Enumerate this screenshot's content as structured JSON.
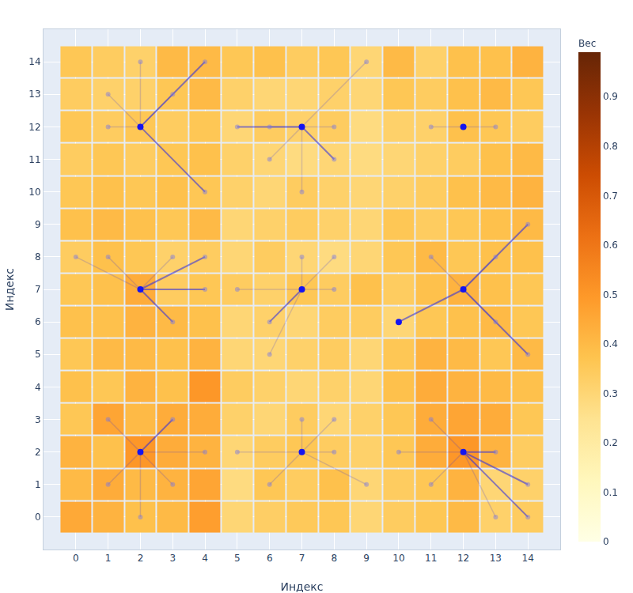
{
  "chart_data": {
    "type": "heatmap",
    "x_label": "Индекс",
    "y_label": "Индекс",
    "x": [
      0,
      1,
      2,
      3,
      4,
      5,
      6,
      7,
      8,
      9,
      10,
      11,
      12,
      13,
      14
    ],
    "y": [
      0,
      1,
      2,
      3,
      4,
      5,
      6,
      7,
      8,
      9,
      10,
      11,
      12,
      13,
      14
    ],
    "cells": [
      [
        0.45,
        0.42,
        0.38,
        0.4,
        0.48,
        0.3,
        0.33,
        0.35,
        0.36,
        0.3,
        0.34,
        0.36,
        0.4,
        0.32,
        0.34
      ],
      [
        0.4,
        0.44,
        0.4,
        0.42,
        0.46,
        0.28,
        0.36,
        0.34,
        0.38,
        0.3,
        0.34,
        0.36,
        0.42,
        0.3,
        0.32
      ],
      [
        0.42,
        0.38,
        0.5,
        0.44,
        0.42,
        0.3,
        0.34,
        0.36,
        0.34,
        0.32,
        0.36,
        0.44,
        0.5,
        0.42,
        0.34
      ],
      [
        0.36,
        0.46,
        0.4,
        0.44,
        0.44,
        0.32,
        0.3,
        0.34,
        0.3,
        0.32,
        0.36,
        0.44,
        0.46,
        0.44,
        0.36
      ],
      [
        0.38,
        0.36,
        0.42,
        0.38,
        0.5,
        0.34,
        0.32,
        0.3,
        0.32,
        0.3,
        0.38,
        0.44,
        0.42,
        0.4,
        0.38
      ],
      [
        0.36,
        0.4,
        0.4,
        0.38,
        0.42,
        0.3,
        0.3,
        0.32,
        0.34,
        0.3,
        0.36,
        0.42,
        0.4,
        0.36,
        0.4
      ],
      [
        0.38,
        0.38,
        0.42,
        0.4,
        0.38,
        0.3,
        0.32,
        0.3,
        0.34,
        0.34,
        0.3,
        0.36,
        0.38,
        0.4,
        0.36
      ],
      [
        0.36,
        0.38,
        0.44,
        0.34,
        0.36,
        0.34,
        0.32,
        0.36,
        0.34,
        0.38,
        0.34,
        0.38,
        0.42,
        0.38,
        0.36
      ],
      [
        0.34,
        0.38,
        0.36,
        0.32,
        0.34,
        0.3,
        0.34,
        0.3,
        0.28,
        0.3,
        0.36,
        0.4,
        0.36,
        0.38,
        0.38
      ],
      [
        0.38,
        0.4,
        0.38,
        0.36,
        0.4,
        0.3,
        0.32,
        0.34,
        0.32,
        0.3,
        0.36,
        0.34,
        0.36,
        0.38,
        0.4
      ],
      [
        0.36,
        0.38,
        0.36,
        0.38,
        0.36,
        0.32,
        0.3,
        0.34,
        0.32,
        0.3,
        0.32,
        0.34,
        0.38,
        0.4,
        0.42
      ],
      [
        0.34,
        0.36,
        0.34,
        0.36,
        0.38,
        0.32,
        0.3,
        0.28,
        0.3,
        0.28,
        0.3,
        0.32,
        0.34,
        0.38,
        0.4
      ],
      [
        0.36,
        0.34,
        0.36,
        0.34,
        0.36,
        0.3,
        0.34,
        0.32,
        0.34,
        0.28,
        0.32,
        0.32,
        0.38,
        0.36,
        0.34
      ],
      [
        0.34,
        0.32,
        0.32,
        0.36,
        0.4,
        0.32,
        0.3,
        0.3,
        0.32,
        0.3,
        0.36,
        0.34,
        0.38,
        0.4,
        0.36
      ],
      [
        0.36,
        0.34,
        0.32,
        0.4,
        0.4,
        0.36,
        0.38,
        0.34,
        0.36,
        0.3,
        0.4,
        0.32,
        0.38,
        0.38,
        0.42
      ]
    ],
    "color_range": [
      0,
      0.99
    ],
    "color_ticks": [
      0,
      0.1,
      0.2,
      0.3,
      0.4,
      0.5,
      0.6,
      0.7,
      0.8,
      0.9
    ],
    "color_label": "Вес",
    "hubs": [
      [
        2,
        12
      ],
      [
        7,
        12
      ],
      [
        12,
        12
      ],
      [
        2,
        7
      ],
      [
        7,
        7
      ],
      [
        12,
        7
      ],
      [
        2,
        2
      ],
      [
        7,
        2
      ],
      [
        12,
        2
      ],
      [
        10,
        6
      ]
    ],
    "strong_edges": [
      [
        2,
        12,
        4,
        14
      ],
      [
        2,
        12,
        4,
        10
      ],
      [
        7,
        12,
        5,
        12
      ],
      [
        7,
        12,
        8,
        11
      ],
      [
        2,
        7,
        4,
        7
      ],
      [
        2,
        7,
        4,
        8
      ],
      [
        2,
        7,
        3,
        6
      ],
      [
        7,
        7,
        6,
        6
      ],
      [
        12,
        7,
        10,
        6
      ],
      [
        12,
        7,
        14,
        9
      ],
      [
        12,
        7,
        14,
        5
      ],
      [
        12,
        2,
        13,
        2
      ],
      [
        12,
        2,
        14,
        1
      ],
      [
        12,
        2,
        14,
        0
      ],
      [
        2,
        2,
        3,
        3
      ]
    ],
    "weak_edges": [
      [
        2,
        12,
        1,
        13
      ],
      [
        2,
        12,
        3,
        13
      ],
      [
        2,
        12,
        1,
        12
      ],
      [
        2,
        12,
        2,
        14
      ],
      [
        7,
        12,
        6,
        12
      ],
      [
        7,
        12,
        8,
        12
      ],
      [
        7,
        12,
        7,
        10
      ],
      [
        7,
        12,
        6,
        11
      ],
      [
        7,
        12,
        9,
        14
      ],
      [
        12,
        12,
        13,
        12
      ],
      [
        12,
        12,
        11,
        12
      ],
      [
        2,
        7,
        1,
        8
      ],
      [
        2,
        7,
        3,
        8
      ],
      [
        2,
        7,
        0,
        8
      ],
      [
        7,
        7,
        5,
        7
      ],
      [
        7,
        7,
        8,
        7
      ],
      [
        7,
        7,
        7,
        8
      ],
      [
        7,
        7,
        8,
        8
      ],
      [
        7,
        7,
        6,
        5
      ],
      [
        12,
        7,
        13,
        8
      ],
      [
        12,
        7,
        11,
        8
      ],
      [
        12,
        7,
        13,
        6
      ],
      [
        2,
        2,
        1,
        1
      ],
      [
        2,
        2,
        1,
        3
      ],
      [
        2,
        2,
        4,
        2
      ],
      [
        2,
        2,
        2,
        0
      ],
      [
        2,
        2,
        3,
        1
      ],
      [
        7,
        2,
        5,
        2
      ],
      [
        7,
        2,
        6,
        1
      ],
      [
        7,
        2,
        8,
        2
      ],
      [
        7,
        2,
        9,
        1
      ],
      [
        7,
        2,
        7,
        3
      ],
      [
        7,
        2,
        8,
        3
      ],
      [
        12,
        2,
        11,
        1
      ],
      [
        12,
        2,
        13,
        0
      ],
      [
        12,
        2,
        11,
        3
      ],
      [
        12,
        2,
        10,
        2
      ]
    ],
    "xlim": [
      -1,
      15
    ],
    "ylim": [
      -1,
      15
    ],
    "xticks": [
      0,
      1,
      2,
      3,
      4,
      5,
      6,
      7,
      8,
      9,
      10,
      11,
      12,
      13,
      14
    ],
    "yticks": [
      0,
      1,
      2,
      3,
      4,
      5,
      6,
      7,
      8,
      9,
      10,
      11,
      12,
      13,
      14
    ],
    "grid": true
  }
}
